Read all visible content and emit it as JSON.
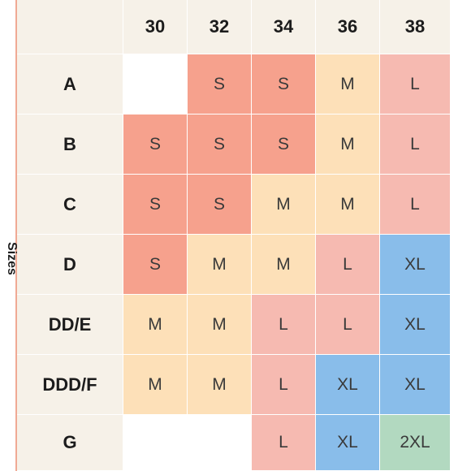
{
  "side_label": "Sizes",
  "columns": [
    "30",
    "32",
    "34",
    "36",
    "38"
  ],
  "rows": [
    {
      "label": "A",
      "cells": [
        "",
        "S",
        "S",
        "M",
        "L"
      ]
    },
    {
      "label": "B",
      "cells": [
        "S",
        "S",
        "S",
        "M",
        "L"
      ]
    },
    {
      "label": "C",
      "cells": [
        "S",
        "S",
        "M",
        "M",
        "L"
      ]
    },
    {
      "label": "D",
      "cells": [
        "S",
        "M",
        "M",
        "L",
        "XL"
      ]
    },
    {
      "label": "DD/E",
      "cells": [
        "M",
        "M",
        "L",
        "L",
        "XL"
      ]
    },
    {
      "label": "DDD/F",
      "cells": [
        "M",
        "M",
        "L",
        "XL",
        "XL"
      ]
    },
    {
      "label": "G",
      "cells": [
        "",
        "",
        "L",
        "XL",
        "2XL"
      ]
    }
  ],
  "colors": {
    "S": "#f6a18d",
    "M": "#fde0b8",
    "L": "#f6bab1",
    "XL": "#89bdea",
    "2XL": "#b2d9c0",
    "header": "#f6f1e8"
  }
}
